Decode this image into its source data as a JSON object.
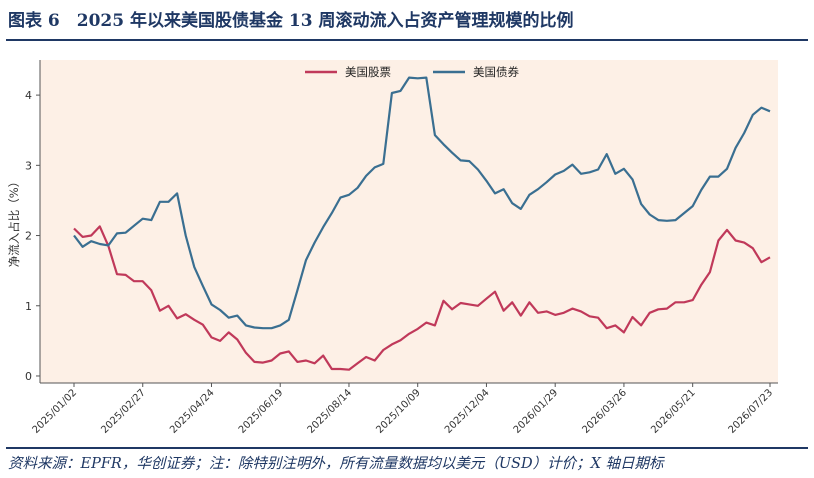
{
  "header": {
    "title": "图表 6　2025 年以来美国股债基金 13 周滚动流入占资产管理规模的比例"
  },
  "footer": {
    "source": "资料来源：EPFR，华创证券；注：除特别注明外，所有流量数据均以美元（USD）计价；X 轴日期标"
  },
  "chart_data": {
    "type": "line",
    "title": "",
    "xlabel": "",
    "ylabel": "净流入占比（%）",
    "ylim": [
      -0.1,
      4.5
    ],
    "yticks": [
      0,
      1,
      2,
      3,
      4
    ],
    "legend_position": "top-center",
    "grid": false,
    "background": "#fdf0e6",
    "x_ticks": [
      "2025/01/02",
      "2025/02/27",
      "2025/04/24",
      "2025/06/19",
      "2025/08/14",
      "2025/10/09",
      "2025/12/04",
      "2026/01/29",
      "2026/03/26",
      "2026/05/21",
      "2026/07/23"
    ],
    "x": [
      "2025/01/02",
      "2025/01/09",
      "2025/01/16",
      "2025/01/23",
      "2025/01/30",
      "2025/02/06",
      "2025/02/13",
      "2025/02/20",
      "2025/02/27",
      "2025/03/06",
      "2025/03/13",
      "2025/03/20",
      "2025/03/27",
      "2025/04/03",
      "2025/04/10",
      "2025/04/17",
      "2025/04/24",
      "2025/05/01",
      "2025/05/08",
      "2025/05/15",
      "2025/05/22",
      "2025/05/29",
      "2025/06/05",
      "2025/06/12",
      "2025/06/19",
      "2025/06/26",
      "2025/07/03",
      "2025/07/10",
      "2025/07/17",
      "2025/07/24",
      "2025/07/31",
      "2025/08/07",
      "2025/08/14",
      "2025/08/21",
      "2025/08/28",
      "2025/09/04",
      "2025/09/11",
      "2025/09/18",
      "2025/09/25",
      "2025/10/02",
      "2025/10/09",
      "2025/10/16",
      "2025/10/23",
      "2025/10/30",
      "2025/11/06",
      "2025/11/13",
      "2025/11/20",
      "2025/11/27",
      "2025/12/04",
      "2025/12/11",
      "2025/12/18",
      "2025/12/25",
      "2026/01/01",
      "2026/01/08",
      "2026/01/15",
      "2026/01/22",
      "2026/01/29",
      "2026/02/05",
      "2026/02/12",
      "2026/02/19",
      "2026/02/26",
      "2026/03/05",
      "2026/03/12",
      "2026/03/19",
      "2026/03/26",
      "2026/04/02",
      "2026/04/09",
      "2026/04/16",
      "2026/04/23",
      "2026/04/30",
      "2026/05/07",
      "2026/05/14",
      "2026/05/21",
      "2026/05/28",
      "2026/06/04",
      "2026/06/11",
      "2026/06/18",
      "2026/06/25",
      "2026/07/02",
      "2026/07/09",
      "2026/07/16",
      "2026/07/23"
    ],
    "series": [
      {
        "name": "美国股票",
        "color": "#c0395a",
        "values": [
          2.1,
          1.98,
          2.0,
          2.13,
          1.85,
          1.45,
          1.44,
          1.35,
          1.35,
          1.22,
          0.93,
          1.0,
          0.82,
          0.88,
          0.8,
          0.73,
          0.55,
          0.5,
          0.62,
          0.52,
          0.33,
          0.2,
          0.19,
          0.22,
          0.32,
          0.35,
          0.2,
          0.22,
          0.18,
          0.29,
          0.1,
          0.1,
          0.09,
          0.18,
          0.27,
          0.22,
          0.37,
          0.45,
          0.51,
          0.6,
          0.67,
          0.76,
          0.72,
          1.07,
          0.95,
          1.04,
          1.02,
          1.0,
          1.1,
          1.2,
          0.93,
          1.05,
          0.86,
          1.05,
          0.9,
          0.92,
          0.87,
          0.9,
          0.96,
          0.92,
          0.85,
          0.83,
          0.68,
          0.72,
          0.62,
          0.84,
          0.72,
          0.9,
          0.95,
          0.96,
          1.05,
          1.05,
          1.08,
          1.3,
          1.48,
          1.93,
          2.08,
          1.93,
          1.9,
          1.82,
          1.62,
          1.69
        ]
      },
      {
        "name": "美国债券",
        "color": "#3a6f91",
        "values": [
          2.0,
          1.84,
          1.92,
          1.88,
          1.86,
          2.03,
          2.04,
          2.14,
          2.24,
          2.22,
          2.48,
          2.48,
          2.6,
          2.0,
          1.55,
          1.28,
          1.02,
          0.94,
          0.83,
          0.86,
          0.72,
          0.69,
          0.68,
          0.68,
          0.72,
          0.8,
          1.22,
          1.65,
          1.9,
          2.12,
          2.32,
          2.54,
          2.58,
          2.68,
          2.85,
          2.97,
          3.02,
          4.03,
          4.06,
          4.25,
          4.24,
          4.25,
          3.43,
          3.3,
          3.18,
          3.07,
          3.06,
          2.94,
          2.78,
          2.6,
          2.66,
          2.46,
          2.38,
          2.58,
          2.66,
          2.76,
          2.87,
          2.92,
          3.01,
          2.88,
          2.9,
          2.94,
          3.16,
          2.88,
          2.95,
          2.8,
          2.45,
          2.3,
          2.22,
          2.21,
          2.22,
          2.32,
          2.42,
          2.65,
          2.84,
          2.84,
          2.95,
          3.25,
          3.46,
          3.72,
          3.82,
          3.77
        ]
      }
    ]
  }
}
